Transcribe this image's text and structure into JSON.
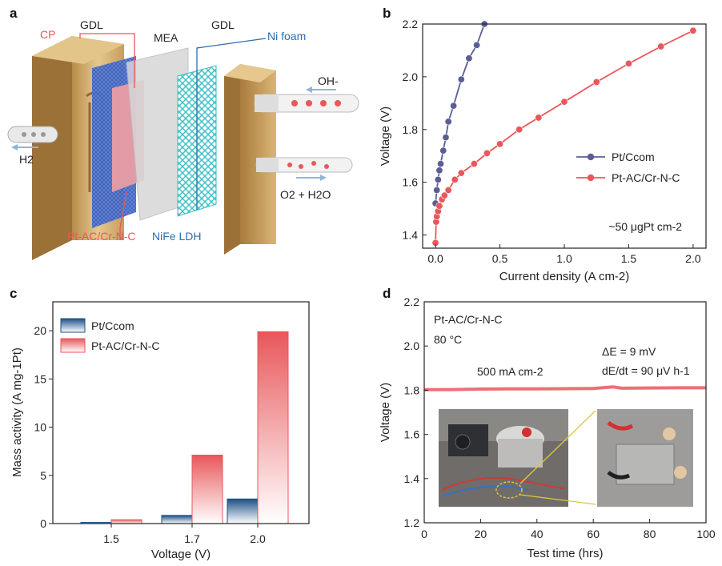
{
  "panel_a": {
    "label": "a",
    "texts": {
      "cp": "CP",
      "gdl_left": "GDL",
      "mea": "MEA",
      "gdl_right": "GDL",
      "ni_foam": "Ni foam",
      "h2": "H2",
      "oh": "OH-",
      "o2_h2o": "O2 + H2O",
      "cathode_catalyst": "Pt-AC/Cr-N-C",
      "anode_catalyst": "NiFe LDH"
    },
    "colors": {
      "cp": "#e8575a",
      "ni_foam": "#2a6fb0",
      "gdl_plate": "#cfa766",
      "ldh": "#3bbfc4"
    }
  },
  "chart_data": [
    {
      "id": "b",
      "type": "line",
      "panel_label": "b",
      "xlabel": "Current density (A cm-2)",
      "ylabel": "Voltage (V)",
      "xlim": [
        -0.1,
        2.1
      ],
      "ylim": [
        1.35,
        2.2
      ],
      "xticks": [
        "0.0",
        "0.5",
        "1.0",
        "1.5",
        "2.0"
      ],
      "yticks": [
        "1.4",
        "1.6",
        "1.8",
        "2.0",
        "2.2"
      ],
      "annotation": "~50 μgPt cm-2",
      "legend_position": "center-right",
      "series": [
        {
          "name": "Pt/Ccom",
          "color": "#5b5e95",
          "x": [
            0.0,
            0.01,
            0.02,
            0.03,
            0.04,
            0.06,
            0.08,
            0.1,
            0.14,
            0.2,
            0.26,
            0.32,
            0.38
          ],
          "y": [
            1.52,
            1.57,
            1.61,
            1.645,
            1.67,
            1.72,
            1.77,
            1.83,
            1.89,
            1.99,
            2.07,
            2.12,
            2.2
          ]
        },
        {
          "name": "Pt-AC/Cr-N-C",
          "color": "#e8575a",
          "x": [
            0.0,
            0.005,
            0.01,
            0.02,
            0.03,
            0.05,
            0.07,
            0.1,
            0.15,
            0.2,
            0.3,
            0.4,
            0.5,
            0.65,
            0.8,
            1.0,
            1.25,
            1.5,
            1.75,
            2.0
          ],
          "y": [
            1.37,
            1.45,
            1.47,
            1.49,
            1.51,
            1.535,
            1.55,
            1.57,
            1.61,
            1.635,
            1.67,
            1.71,
            1.745,
            1.8,
            1.845,
            1.905,
            1.98,
            2.05,
            2.115,
            2.175
          ]
        }
      ]
    },
    {
      "id": "c",
      "type": "bar",
      "panel_label": "c",
      "xlabel": "Voltage (V)",
      "ylabel": "Mass activity (A mg-1Pt)",
      "categories": [
        "1.5",
        "1.7",
        "2.0"
      ],
      "ylim": [
        0,
        23
      ],
      "yticks": [
        "0",
        "5",
        "10",
        "15",
        "20"
      ],
      "legend_position": "top-left",
      "series": [
        {
          "name": "Pt/Ccom",
          "color": "#1e4f85",
          "values": [
            0.12,
            0.85,
            2.55
          ]
        },
        {
          "name": "Pt-AC/Cr-N-C",
          "color": "#e8575a",
          "values": [
            0.4,
            7.1,
            19.9
          ]
        }
      ]
    },
    {
      "id": "d",
      "type": "line",
      "panel_label": "d",
      "xlabel": "Test time (hrs)",
      "ylabel": "Voltage (V)",
      "xlim": [
        0,
        100
      ],
      "ylim": [
        1.2,
        2.2
      ],
      "xticks": [
        "0",
        "20",
        "40",
        "60",
        "80",
        "100"
      ],
      "yticks": [
        "1.2",
        "1.4",
        "1.6",
        "1.8",
        "2.0",
        "2.2"
      ],
      "annotations": {
        "catalyst": "Pt-AC/Cr-N-C",
        "temperature": "80 °C",
        "current": "500 mA cm-2",
        "delta_e": "ΔE = 9 mV",
        "rate": "dE/dt = 90 μV h-1"
      },
      "series": [
        {
          "name": "Pt-AC/Cr-N-C",
          "color": "#e8575a",
          "x": [
            0,
            10,
            20,
            30,
            40,
            50,
            60,
            67,
            70,
            80,
            90,
            100
          ],
          "y": [
            1.802,
            1.803,
            1.805,
            1.806,
            1.806,
            1.807,
            1.808,
            1.815,
            1.809,
            1.81,
            1.811,
            1.811
          ]
        }
      ]
    }
  ]
}
